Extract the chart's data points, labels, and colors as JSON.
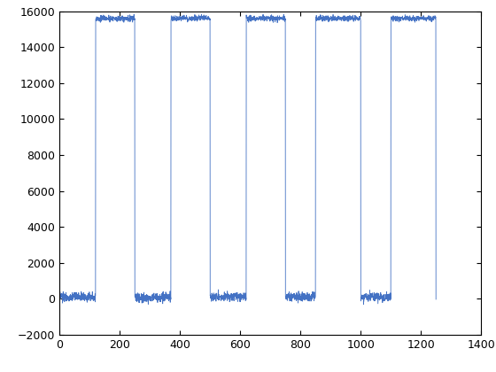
{
  "line_color": "#4472c4",
  "line_width": 0.6,
  "xlim": [
    0,
    1400
  ],
  "ylim": [
    -2000,
    16000
  ],
  "xticks": [
    0,
    200,
    400,
    600,
    800,
    1000,
    1200,
    1400
  ],
  "yticks": [
    -2000,
    0,
    2000,
    4000,
    6000,
    8000,
    10000,
    12000,
    14000,
    16000
  ],
  "high_level": 15600,
  "low_level": 100,
  "noise_amplitude_high": 80,
  "noise_amplitude_low": 130,
  "num_points": 2500,
  "total_x": 1250,
  "high_segments": [
    [
      120,
      250
    ],
    [
      370,
      500
    ],
    [
      620,
      750
    ],
    [
      850,
      1000
    ],
    [
      1100,
      1250
    ]
  ],
  "background_color": "#ffffff",
  "figure_facecolor": "#ffffff",
  "figwidth": 5.6,
  "figheight": 4.2,
  "dpi": 100
}
